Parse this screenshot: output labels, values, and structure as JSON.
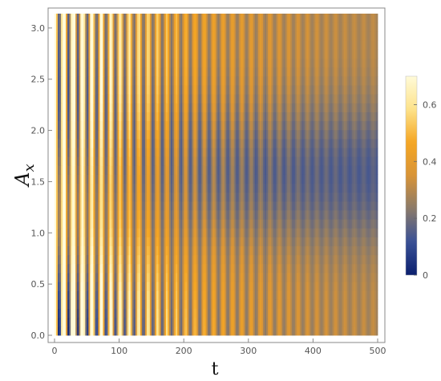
{
  "chart_data": {
    "type": "heatmap",
    "title": "",
    "xlabel": "t",
    "ylabel_main": "A",
    "ylabel_sub": "x",
    "xlim": [
      0,
      500
    ],
    "ylim": [
      0,
      3.14
    ],
    "xticks": [
      {
        "value": 0,
        "label": "0"
      },
      {
        "value": 100,
        "label": "100"
      },
      {
        "value": 200,
        "label": "200"
      },
      {
        "value": 300,
        "label": "300"
      },
      {
        "value": 400,
        "label": "400"
      },
      {
        "value": 500,
        "label": "500"
      }
    ],
    "yticks": [
      {
        "value": 0.0,
        "label": "0.0"
      },
      {
        "value": 0.5,
        "label": "0.5"
      },
      {
        "value": 1.0,
        "label": "1.0"
      },
      {
        "value": 1.5,
        "label": "1.5"
      },
      {
        "value": 2.0,
        "label": "2.0"
      },
      {
        "value": 2.5,
        "label": "2.5"
      },
      {
        "value": 3.0,
        "label": "3.0"
      }
    ],
    "colorbar": {
      "range": [
        0,
        0.7
      ],
      "ticks": [
        {
          "value": 0,
          "label": "0"
        },
        {
          "value": 0.2,
          "label": "0.2"
        },
        {
          "value": 0.4,
          "label": "0.4"
        },
        {
          "value": 0.6,
          "label": "0.6"
        }
      ],
      "colors": [
        "#0b1f6e",
        "#3a5196",
        "#8a7a6a",
        "#d89437",
        "#f5a623",
        "#fde28a",
        "#fffbd9"
      ]
    },
    "pattern": {
      "description_values": {
        "oscillation_period_t": 14.5,
        "band_minimum_y": 1.57,
        "initial_value": 0.7,
        "late_time_value_near_edges": 0.28,
        "late_time_value_near_center": 0.13
      }
    }
  }
}
